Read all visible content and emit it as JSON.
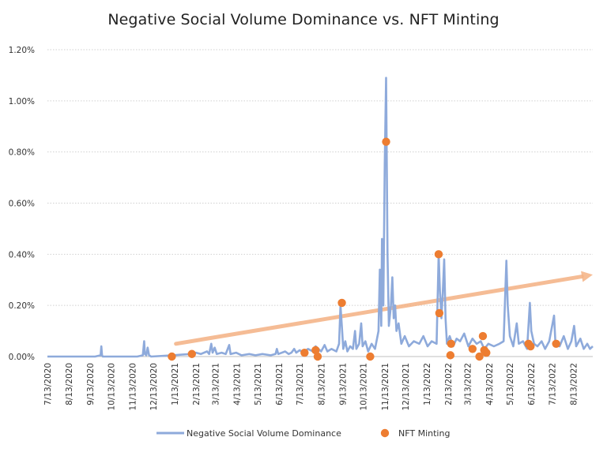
{
  "chart_data": {
    "type": "line",
    "title": "Negative Social Volume Dominance vs. NFT Minting",
    "y_axis": {
      "min": 0,
      "max": 1.2,
      "unit": "%",
      "ticks": [
        "0.00%",
        "0.20%",
        "0.40%",
        "0.60%",
        "0.80%",
        "1.00%",
        "1.20%"
      ],
      "tick_values": [
        0,
        0.2,
        0.4,
        0.6,
        0.8,
        1.0,
        1.2
      ]
    },
    "x_axis": {
      "min": "2020-07-13",
      "max": "2022-09-10",
      "ticks": [
        "7/13/2020",
        "8/13/2020",
        "9/13/2020",
        "10/13/2020",
        "11/13/2020",
        "12/13/2020",
        "1/13/2021",
        "2/13/2021",
        "3/13/2021",
        "4/13/2021",
        "5/13/2021",
        "6/13/2021",
        "7/13/2021",
        "8/13/2021",
        "9/13/2021",
        "10/13/2021",
        "11/13/2021",
        "12/13/2021",
        "1/13/2022",
        "2/13/2022",
        "3/13/2022",
        "4/13/2022",
        "5/13/2022",
        "6/13/2022",
        "7/13/2022",
        "8/13/2022"
      ],
      "tick_dates": [
        "2020-07-13",
        "2020-08-13",
        "2020-09-13",
        "2020-10-13",
        "2020-11-13",
        "2020-12-13",
        "2021-01-13",
        "2021-02-13",
        "2021-03-13",
        "2021-04-13",
        "2021-05-13",
        "2021-06-13",
        "2021-07-13",
        "2021-08-13",
        "2021-09-13",
        "2021-10-13",
        "2021-11-13",
        "2021-12-13",
        "2022-01-13",
        "2022-02-13",
        "2022-03-13",
        "2022-04-13",
        "2022-05-13",
        "2022-06-13",
        "2022-07-13",
        "2022-08-13"
      ]
    },
    "grid": "horizontal dotted",
    "legend": {
      "position": "bottom",
      "entries": [
        "Negative Social Volume Dominance",
        "NFT Minting"
      ]
    },
    "series": [
      {
        "name": "Negative Social Volume Dominance",
        "type": "line",
        "color": "#8eaadb",
        "points": [
          [
            "2020-07-13",
            0
          ],
          [
            "2020-09-20",
            0
          ],
          [
            "2020-09-28",
            0.005
          ],
          [
            "2020-09-29",
            0.04
          ],
          [
            "2020-09-30",
            0.005
          ],
          [
            "2020-10-01",
            0
          ],
          [
            "2020-11-20",
            0
          ],
          [
            "2020-11-28",
            0.005
          ],
          [
            "2020-11-30",
            0.06
          ],
          [
            "2020-12-01",
            0.01
          ],
          [
            "2020-12-03",
            0.005
          ],
          [
            "2020-12-05",
            0.035
          ],
          [
            "2020-12-07",
            0.005
          ],
          [
            "2020-12-10",
            0
          ],
          [
            "2021-01-10",
            0.005
          ],
          [
            "2021-01-25",
            0.008
          ],
          [
            "2021-02-05",
            0.01
          ],
          [
            "2021-02-13",
            0.015
          ],
          [
            "2021-02-20",
            0.01
          ],
          [
            "2021-03-01",
            0.02
          ],
          [
            "2021-03-04",
            0.01
          ],
          [
            "2021-03-07",
            0.05
          ],
          [
            "2021-03-09",
            0.015
          ],
          [
            "2021-03-12",
            0.035
          ],
          [
            "2021-03-15",
            0.01
          ],
          [
            "2021-03-22",
            0.015
          ],
          [
            "2021-03-28",
            0.01
          ],
          [
            "2021-04-02",
            0.045
          ],
          [
            "2021-04-04",
            0.01
          ],
          [
            "2021-04-12",
            0.015
          ],
          [
            "2021-04-20",
            0.005
          ],
          [
            "2021-05-01",
            0.01
          ],
          [
            "2021-05-10",
            0.005
          ],
          [
            "2021-05-20",
            0.01
          ],
          [
            "2021-06-01",
            0.005
          ],
          [
            "2021-06-08",
            0.01
          ],
          [
            "2021-06-10",
            0.03
          ],
          [
            "2021-06-12",
            0.01
          ],
          [
            "2021-06-22",
            0.02
          ],
          [
            "2021-06-27",
            0.01
          ],
          [
            "2021-07-01",
            0.015
          ],
          [
            "2021-07-05",
            0.03
          ],
          [
            "2021-07-08",
            0.015
          ],
          [
            "2021-07-13",
            0.025
          ],
          [
            "2021-07-18",
            0.015
          ],
          [
            "2021-07-25",
            0.03
          ],
          [
            "2021-08-01",
            0.02
          ],
          [
            "2021-08-05",
            0.04
          ],
          [
            "2021-08-09",
            0.03
          ],
          [
            "2021-08-13",
            0.02
          ],
          [
            "2021-08-18",
            0.045
          ],
          [
            "2021-08-22",
            0.02
          ],
          [
            "2021-08-28",
            0.03
          ],
          [
            "2021-09-04",
            0.02
          ],
          [
            "2021-09-08",
            0.05
          ],
          [
            "2021-09-10",
            0.2
          ],
          [
            "2021-09-12",
            0.12
          ],
          [
            "2021-09-14",
            0.03
          ],
          [
            "2021-09-17",
            0.06
          ],
          [
            "2021-09-20",
            0.02
          ],
          [
            "2021-09-24",
            0.04
          ],
          [
            "2021-09-28",
            0.03
          ],
          [
            "2021-10-01",
            0.1
          ],
          [
            "2021-10-03",
            0.03
          ],
          [
            "2021-10-07",
            0.05
          ],
          [
            "2021-10-10",
            0.13
          ],
          [
            "2021-10-12",
            0.04
          ],
          [
            "2021-10-16",
            0.06
          ],
          [
            "2021-10-20",
            0.02
          ],
          [
            "2021-10-25",
            0.05
          ],
          [
            "2021-10-30",
            0.03
          ],
          [
            "2021-11-04",
            0.1
          ],
          [
            "2021-11-06",
            0.34
          ],
          [
            "2021-11-08",
            0.12
          ],
          [
            "2021-11-09",
            0.46
          ],
          [
            "2021-11-11",
            0.2
          ],
          [
            "2021-11-13",
            0.75
          ],
          [
            "2021-11-15",
            1.09
          ],
          [
            "2021-11-17",
            0.4
          ],
          [
            "2021-11-19",
            0.12
          ],
          [
            "2021-11-22",
            0.2
          ],
          [
            "2021-11-24",
            0.31
          ],
          [
            "2021-11-26",
            0.15
          ],
          [
            "2021-11-28",
            0.2
          ],
          [
            "2021-11-30",
            0.1
          ],
          [
            "2021-12-03",
            0.13
          ],
          [
            "2021-12-07",
            0.05
          ],
          [
            "2021-12-12",
            0.08
          ],
          [
            "2021-12-18",
            0.04
          ],
          [
            "2021-12-25",
            0.06
          ],
          [
            "2022-01-02",
            0.05
          ],
          [
            "2022-01-08",
            0.08
          ],
          [
            "2022-01-14",
            0.04
          ],
          [
            "2022-01-20",
            0.06
          ],
          [
            "2022-01-27",
            0.05
          ],
          [
            "2022-01-30",
            0.4
          ],
          [
            "2022-02-01",
            0.25
          ],
          [
            "2022-02-03",
            0.15
          ],
          [
            "2022-02-05",
            0.25
          ],
          [
            "2022-02-07",
            0.38
          ],
          [
            "2022-02-09",
            0.15
          ],
          [
            "2022-02-11",
            0.05
          ],
          [
            "2022-02-15",
            0.08
          ],
          [
            "2022-02-20",
            0.04
          ],
          [
            "2022-02-25",
            0.07
          ],
          [
            "2022-03-02",
            0.06
          ],
          [
            "2022-03-08",
            0.09
          ],
          [
            "2022-03-14",
            0.04
          ],
          [
            "2022-03-20",
            0.07
          ],
          [
            "2022-03-26",
            0.05
          ],
          [
            "2022-04-01",
            0.06
          ],
          [
            "2022-04-06",
            0.03
          ],
          [
            "2022-04-12",
            0.05
          ],
          [
            "2022-04-20",
            0.04
          ],
          [
            "2022-04-28",
            0.05
          ],
          [
            "2022-05-04",
            0.06
          ],
          [
            "2022-05-08",
            0.375
          ],
          [
            "2022-05-10",
            0.2
          ],
          [
            "2022-05-13",
            0.08
          ],
          [
            "2022-05-18",
            0.04
          ],
          [
            "2022-05-23",
            0.13
          ],
          [
            "2022-05-26",
            0.05
          ],
          [
            "2022-06-01",
            0.06
          ],
          [
            "2022-06-07",
            0.03
          ],
          [
            "2022-06-11",
            0.21
          ],
          [
            "2022-06-13",
            0.1
          ],
          [
            "2022-06-17",
            0.05
          ],
          [
            "2022-06-22",
            0.04
          ],
          [
            "2022-06-28",
            0.06
          ],
          [
            "2022-07-03",
            0.03
          ],
          [
            "2022-07-09",
            0.06
          ],
          [
            "2022-07-16",
            0.16
          ],
          [
            "2022-07-18",
            0.05
          ],
          [
            "2022-07-24",
            0.04
          ],
          [
            "2022-07-30",
            0.08
          ],
          [
            "2022-08-05",
            0.03
          ],
          [
            "2022-08-10",
            0.06
          ],
          [
            "2022-08-14",
            0.12
          ],
          [
            "2022-08-17",
            0.04
          ],
          [
            "2022-08-23",
            0.07
          ],
          [
            "2022-08-28",
            0.03
          ],
          [
            "2022-09-02",
            0.05
          ],
          [
            "2022-09-06",
            0.03
          ],
          [
            "2022-09-10",
            0.04
          ]
        ]
      },
      {
        "name": "NFT Minting",
        "type": "scatter",
        "color": "#ed7d31",
        "points": [
          [
            "2021-01-09",
            0.0
          ],
          [
            "2021-02-07",
            0.01
          ],
          [
            "2021-07-20",
            0.015
          ],
          [
            "2021-08-05",
            0.025
          ],
          [
            "2021-08-08",
            0.0
          ],
          [
            "2021-09-12",
            0.21
          ],
          [
            "2021-10-23",
            0.0
          ],
          [
            "2021-11-15",
            0.84
          ],
          [
            "2022-01-30",
            0.4
          ],
          [
            "2022-01-31",
            0.17
          ],
          [
            "2022-02-16",
            0.005
          ],
          [
            "2022-02-17",
            0.05
          ],
          [
            "2022-03-20",
            0.03
          ],
          [
            "2022-03-30",
            0.0
          ],
          [
            "2022-04-04",
            0.08
          ],
          [
            "2022-04-06",
            0.025
          ],
          [
            "2022-04-09",
            0.015
          ],
          [
            "2022-06-09",
            0.05
          ],
          [
            "2022-06-12",
            0.04
          ],
          [
            "2022-07-19",
            0.05
          ]
        ]
      }
    ],
    "annotations": [
      {
        "type": "trend-arrow",
        "color": "#f4b183",
        "from": [
          "2021-01-15",
          0.05
        ],
        "to": [
          "2022-09-10",
          0.32
        ]
      }
    ]
  }
}
